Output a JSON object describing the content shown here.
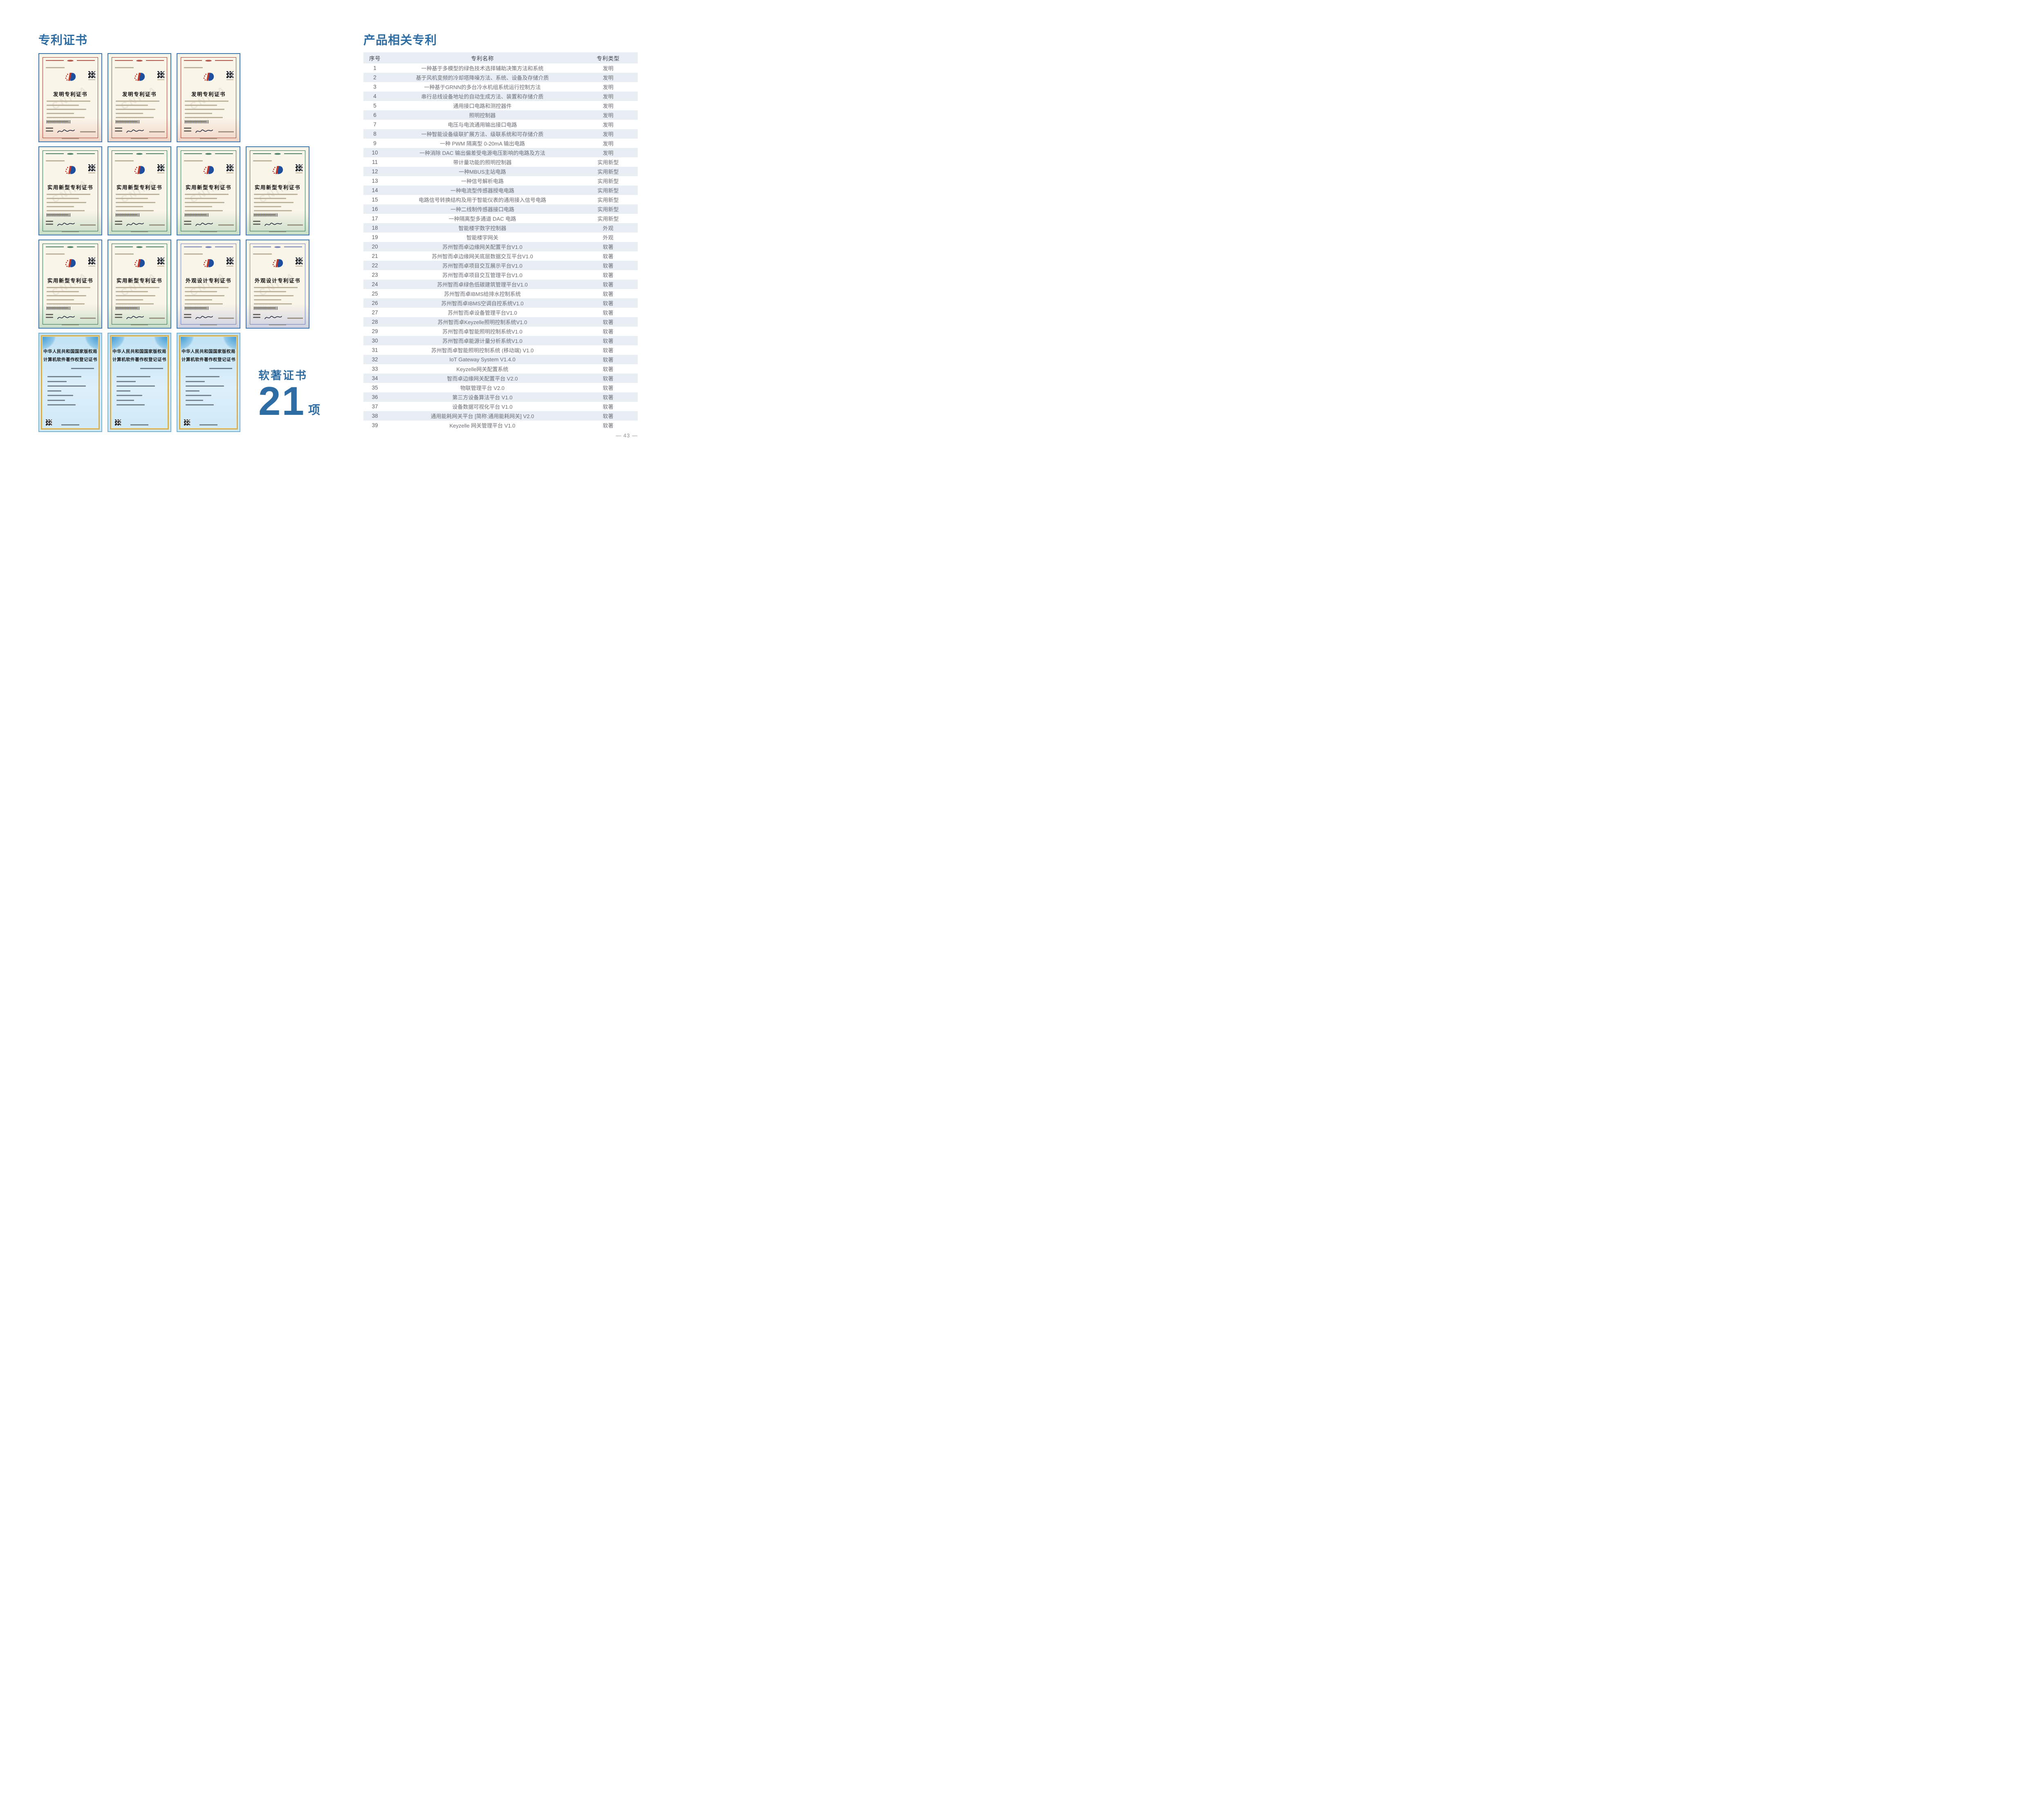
{
  "colors": {
    "accent": "#2e6da4",
    "table_band": "#e9eef5",
    "cert_cream": "#faf5e9",
    "cert_blue_border": "#4079b2"
  },
  "left": {
    "title": "专利证书",
    "software_label": "软著证书",
    "software_count": "21",
    "software_unit": "项",
    "cert_rows": [
      {
        "certs": [
          {
            "variant": "invention",
            "title": "发明专利证书",
            "watermark": "CNIPA"
          },
          {
            "variant": "invention",
            "title": "发明专利证书",
            "watermark": "CNIPA"
          },
          {
            "variant": "invention",
            "title": "发明专利证书",
            "watermark": "CNIPA"
          }
        ]
      },
      {
        "certs": [
          {
            "variant": "utility",
            "title": "实用新型专利证书",
            "watermark": "CNIPA"
          },
          {
            "variant": "utility",
            "title": "实用新型专利证书",
            "watermark": "CNIPA"
          },
          {
            "variant": "utility",
            "title": "实用新型专利证书",
            "watermark": "CNIPA"
          },
          {
            "variant": "utility",
            "title": "实用新型专利证书",
            "watermark": "CNIPA"
          }
        ]
      },
      {
        "certs": [
          {
            "variant": "utility",
            "title": "实用新型专利证书",
            "watermark": "CNIPA"
          },
          {
            "variant": "utility",
            "title": "实用新型专利证书",
            "watermark": "CNIPA"
          },
          {
            "variant": "design",
            "title": "外观设计专利证书",
            "watermark": "CNIPA"
          },
          {
            "variant": "design",
            "title": "外观设计专利证书",
            "watermark": "CNIPA"
          }
        ]
      },
      {
        "certs": [
          {
            "variant": "copyright",
            "title_line1": "中华人民共和国国家版权局",
            "title_line2": "计算机软件著作权登记证书"
          },
          {
            "variant": "copyright",
            "title_line1": "中华人民共和国国家版权局",
            "title_line2": "计算机软件著作权登记证书"
          },
          {
            "variant": "copyright",
            "title_line1": "中华人民共和国国家版权局",
            "title_line2": "计算机软件著作权登记证书"
          }
        ]
      }
    ]
  },
  "right": {
    "title": "产品相关专利",
    "page_number": "— 43 —",
    "table": {
      "headers": [
        "序号",
        "专利名称",
        "专利类型"
      ],
      "rows": [
        [
          "1",
          "一种基于多模型的绿色技术选择辅助决策方法和系统",
          "发明"
        ],
        [
          "2",
          "基于风机变频的冷却塔降噪方法、系统、设备及存储介质",
          "发明"
        ],
        [
          "3",
          "一种基于GRNN的多台冷水机组系统运行控制方法",
          "发明"
        ],
        [
          "4",
          "串行总线设备地址的自动生成方法、装置和存储介质",
          "发明"
        ],
        [
          "5",
          "通用接口电路和测控器件",
          "发明"
        ],
        [
          "6",
          "照明控制器",
          "发明"
        ],
        [
          "7",
          "电压与电流通用输出接口电路",
          "发明"
        ],
        [
          "8",
          "一种智能设备级联扩展方法、级联系统和可存储介质",
          "发明"
        ],
        [
          "9",
          "一种 PWM 隔离型 0-20mA 输出电路",
          "发明"
        ],
        [
          "10",
          "一种消除 DAC 输出偏差受电源电压影响的电路及方法",
          "发明"
        ],
        [
          "11",
          "带计量功能的照明控制器",
          "实用新型"
        ],
        [
          "12",
          "一种MBUS主站电路",
          "实用新型"
        ],
        [
          "13",
          "一种信号解析电路",
          "实用新型"
        ],
        [
          "14",
          "一种电流型传感器授电电路",
          "实用新型"
        ],
        [
          "15",
          "电路信号转换结构及用于智能仪表的通用接入信号电路",
          "实用新型"
        ],
        [
          "16",
          "一种二线制传感器接口电路",
          "实用新型"
        ],
        [
          "17",
          "一种隔离型多通道 DAC 电路",
          "实用新型"
        ],
        [
          "18",
          "智能楼宇数字控制器",
          "外观"
        ],
        [
          "19",
          "智能楼宇网关",
          "外观"
        ],
        [
          "20",
          "苏州智而卓边缘网关配置平台V1.0",
          "软著"
        ],
        [
          "21",
          "苏州智而卓边缘网关底层数据交互平台V1.0",
          "软著"
        ],
        [
          "22",
          "苏州智而卓项目交互展示平台V1.0",
          "软著"
        ],
        [
          "23",
          "苏州智而卓项目交互管理平台V1.0",
          "软著"
        ],
        [
          "24",
          "苏州智而卓绿色低碳建筑管理平台V1.0",
          "软著"
        ],
        [
          "25",
          "苏州智而卓IBMS给排水控制系统",
          "软著"
        ],
        [
          "26",
          "苏州智而卓IBMS空调自控系统V1.0",
          "软著"
        ],
        [
          "27",
          "苏州智而卓设备管理平台V1.0",
          "软著"
        ],
        [
          "28",
          "苏州智而卓Keyzelle照明控制系统V1.0",
          "软著"
        ],
        [
          "29",
          "苏州智而卓智能照明控制系统V1.0",
          "软著"
        ],
        [
          "30",
          "苏州智而卓能源计量分析系统V1.0",
          "软著"
        ],
        [
          "31",
          "苏州智而卓智能照明控制系统 (移动端) V1.0",
          "软著"
        ],
        [
          "32",
          "IoT Gateway System V1.4.0",
          "软著"
        ],
        [
          "33",
          "Keyzelle网关配置系统",
          "软著"
        ],
        [
          "34",
          "智而卓边缘网关配置平台 V2.0",
          "软著"
        ],
        [
          "35",
          "物联管理平台 V2.0",
          "软著"
        ],
        [
          "36",
          "第三方设备算法平台 V1.0",
          "软著"
        ],
        [
          "37",
          "设备数据可视化平台 V1.0",
          "软著"
        ],
        [
          "38",
          "通用能耗网关平台 [简称:通用能耗网关] V2.0",
          "软著"
        ],
        [
          "39",
          "Keyzelle 网关管理平台 V1.0",
          "软著"
        ]
      ]
    }
  }
}
